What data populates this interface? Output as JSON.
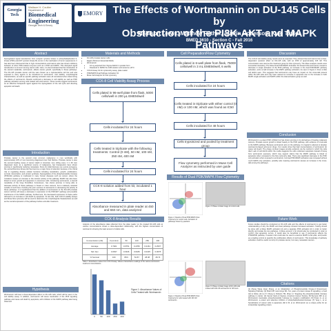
{
  "header": {
    "title_line1": "The Effects of Wortmannin on DU-145 Cells by",
    "title_line2": "Obstruction of the PI3K-AKT and MAPK Pathways",
    "authors": "Madison Lewis, Matthew Rather, Austin Roberson, Kyle Taylor",
    "course": "BMED 3610 - Section C - Fall 2016",
    "logo_gt": [
      "Georgia",
      "Tech"
    ],
    "logo_coulter_top": "Wallace H. Coulter",
    "logo_coulter_dept": [
      "Department of",
      "Biomedical",
      "Engineering"
    ],
    "logo_coulter_bottom": "Georgia Tech & Emory",
    "logo_emory": "EMORY"
  },
  "sections": {
    "abstract": "Abstract",
    "introduction": "Introduction",
    "hypothesis": "Hypothesis",
    "materials_methods": "Materials and Methods",
    "cck8_methods": "CCK-8 Cell Viability Assay Process",
    "cck8_analysis": "CCK-8 Analysis Results",
    "flow_cytometry": "Cell Preparation/Flow Cytometry",
    "flow_results": "Results of Dual PI3K/MAPK Flow Cytometry",
    "discussion": "Discussion",
    "conclusion": "Conclusion",
    "future_work": "Future Work",
    "citations": "Citations"
  },
  "text": {
    "abstract": "Dysregulated signal transduction from receptor tyrosine kinase to phosphatidylinositol 3-kinase (PI3K) and AKT (protein kinase B) occurs in the inactivation of tumor suppressors. It has also been discovered that in high concentrations wortmannin also has shown inhibitory behavior of other PI3K-related enzymes such as mTOR and MAPK. This disrupted signal transduction is common among cancer cells. Here, it is demonstrated that the introduction of the steroid metabolite, wortmannin, affects cancer growth, specifically in these pathways. The DU-145 prostate cancer cell line was chosen as a representative cell line and was exposed to many agents to be introduced to wortmannin. Cell viability, morphological characteristics, as well as specific pathway activation were all considered when determining the effects of wortmannin. Results confirmed a decrease in cell viability as well as PI3K pathway activation among cells treated with wortmannin. These results suggest wortmannin as an effective therapeutic agent against the dysregulation of the cell cycle and directing apoptotic cell death.",
    "introduction": "Prostate cancer is the second most common malignancy in men worldwide with approximately 16% of men becoming diagnosed over their lifetime. Prostate cancer is also the second leading cause of cancer death in American men, killing every 1 in 39 men diagnosed. Even as a significant source of malignancy, few therapeutics have shown promise in significantly reducing metastasis. Since its initial discovery as a proto-oncogene, the serine/threonine kinase Akt has become a major focus of attention because of its critical role in regulating diverse cellular functions including metabolism, growth, proliferation, survival, transcription, and protein synthesis. Dysregulation of the phosphoinositide 3-kinase (PI3K/Akt) pathway is implicated in many human diseases such as cancer, where the mutations causes an increase in the intrinsic activity of the pathway. MAPK has also been linked to tumor growth and apoptosis in cancerous cells. Introducing wortmannin, a steroid metabolite of the fungi Penicillium funiculosum, has shown promise in being able to decrease activity of these pathways in breast or colon cancers, but is relatively untested outside of such lines. Knowing the prior success of wortmannin in decreasing the activity of these pathways, it is hypothesized that the addition of wortmannin to the DU-145 prostate cancer cell line will cause a decrease in expression of the PI3K/AKT pathway and possible interference of the MAPK pathway. Furthermore, the decreased expression of these paths will lead to an increase in cell death by apoptosis. To test this, both CCK-8 viability assays and Muse flow cytometry will be used to determine the morphological characteristics as well as the overall expression of the pathways before and after treatment.",
    "hypothesis": "Wortmannin will have a dose-dependent effect on DU-145 cells, which will be seen in the cell viability assay. In addition, wortmannin will cause inactivation of the PI3K signaling pathway and cause cell death by apoptosis, with inhibition of the MAPK pathway also being observed.",
    "discussion": "The CCK-8 cell viability assay results were as expected. They showed that wortmannin has a dose-dependent cytotoxic effect on DU-145 cells, with an IC50 of approximately 106 nM. This concentration was used as the treatment group for flow cytometry. The Muse analysis results were somewhat interesting. The Muse Dual PI3K/MAPK Activation Kit showed that wortmannin caused a decrease in single activation of the PI3K pathway, an increase in the dual PI3K/MAPK pathway activation, and a small increase in the MAPK pathway activation. As seen in Figure 3, there is little cell debris seen. This suggests that wortmannin may have an impact on the cross-talk present within DU-145 cells and may have caused an increase in apoptosis due to the increase in both MAPK single activation and MAPK within the dual activation group as well.",
    "conclusion": "Wortmannin is a potent PI3K inhibitor but has shown promise in its derivatives of treating malignant cancers. Prostate cancer growth is linked heavily to the PI3K pathway, with evidence of cross-talk to the MAPK pathway. Because wortmannin acts on the pathway, it is logical to attempt to develop wortmannin-based anti-tumor drugs. Our results show that high concentrations of wortmannin do cause cell death. The phase contrast images provide evidence via the method in which the cells died. Lack of cell debris within the media suggests the cells underwent apoptosis instead of being from wortmannin exposure, which may support claims that the MAPK pathway is linked to apoptosis when compared to the flow cytometry data. There was significant decrease in the PI3K only activation when exposed to wortmannin, but dual PI3K/MAPK activation was increased without much MAPK only activation, possibly also meaning wortmannin causes an increase in the cross-talk among the pathways.",
    "future_work": "Future studies should be conducted on DU-145 cells and the effects of wortmannin to get better understanding of why the MAPK and dual pathways showed increased activation. Testing should be done with a Muse MAPK activation kit and a separate PI3K activation kit in order to better identify and isolate the two pathways. A Muse annexin V kit should also be conducted in order to confirm that apoptosis occurs. It would also be beneficial to see if wortmannin affects the PTEN/PI3K pathway. If western blot could also be used to examine MAPK & Akt pAkt, and β-actin as a loading control to quantify the proliferation effects of wortmannin. This knowledge of pathway activation could be useful not only for prostate cancer, but many metastatic cancers.",
    "citations": "[1] Zhang Wang Quan Zhang, et al. Metabolism of Phosphoinositide Kinase-3 Downstream Signaling Pathway. [2] Brazil DP, Hemmings BA. Ten years of protein kinase B signalling: a hard Akt to follow. [3] Liu P, Cheng H, Roberts TM, Zhao JJ. Targeting the phosphoinositide 3-kinase pathway in cancer. [4] Cancer Facts & Figures. American Cancer Society. [5] Wymann MP, et al. Wortmannin inactivates phosphoinositide 3-kinase by covalent modification. [6] Powis G, et al. Wortmannin, a potent and selective inhibitor of phosphatidylinositol-3-kinase. [7] Yang L, et al. Sensitization of cancer cells to apoptosis. [8] Ui M, et al. Wortmannin as a unique probe for an intracellular signalling protein."
  },
  "materials": [
    "DU-145 prostate cancer cells",
    "Eagle's Minimum Essential Media",
    "Wortmannin",
    "10 mg acquired from Sigma-Aldrich in powder form",
    "Dissolved in DMSO for 10M solution and stored at -20°C",
    "CCK-8 Assay Kit for cytotoxicity assay, plate reader",
    "PI3K/MAPK Dual Pathway Activation Kit",
    "Muse Cell Analyzer for flow cytometry"
  ],
  "cck8_steps": [
    "Cells plated in 96-well plate from flask, 5000 cells/well in 200 µL EMEM/well",
    "Cells incubated for 24 hours",
    "Cells treated in triplicate with the following treatments: Control (0 nM), 50 nM, 100 nM, 250 nM, 400 nM",
    "Cells incubated for 24 hours",
    "CCK-8 solution added from kit, incubated 1 hour",
    "Absorbance measured in plate reader at 450 and 650 nm, data analyzed"
  ],
  "flow_steps": [
    "Cells plated in 6-well plate from flask, 75000 cells/well in 3 mL EMEM/well, 6 wells",
    "Cells incubated for 24 hours",
    "Cells treated in triplicate with either control (0 nM) or 100 nM, which was found as IC50",
    "Cells incubated for 48 hours",
    "Cells trypsinized and pooled by treatment group",
    "Flow cytometry performed in Muse Cell Analyzer as instructed by user guide"
  ],
  "cck8_table": {
    "header": [
      "Concentration (nM)",
      "0 (control)",
      "50",
      "100",
      "250",
      "400"
    ],
    "rows": [
      [
        "Average",
        "0.7921",
        "0.6751",
        "0.4780",
        "0.2161",
        "0.2537"
      ],
      [
        "Std. Dev",
        "0.0637",
        "0.0346",
        "0.0186",
        "0.0225",
        "0.0078"
      ],
      [
        "% Survival",
        "100",
        "88.9",
        "54.87",
        "28.38",
        "28.74"
      ]
    ]
  },
  "captions": {
    "table1": "Table 1: Absorbance values from CCK-8 Assay. Values of absorbance readings of the various wortmannin treatment concentrations.",
    "fig1": "Figure 1: Absorbance Values of Cells Treated with Wortmannin",
    "fig2": "Figure 2: Results of Dual PI3K/MAPK Flow Cytometry for control cells. Activation of pathways shown by quadrant.",
    "fig3": "Figure 3: Phase contrast image of control cells.",
    "fig4": "Figure 4: Results of Dual PI3K/MAPK Flow Cytometry for cells treated with 100 nM wortmannin.",
    "fig5": "Figure 5: Phase contrast image of DU-145 cells treated with 100 nM wortmannin for 48 hours."
  },
  "chart_data": {
    "type": "bar",
    "categories": [
      "0",
      "50",
      "100",
      "250",
      "400"
    ],
    "values": [
      0.7921,
      0.6751,
      0.478,
      0.2161,
      0.2537
    ],
    "ylim": [
      0,
      0.9
    ]
  },
  "colors": {
    "header_bg": "#1f3a63",
    "section_bar": "#6f8aac",
    "box_border": "#2f4f7f"
  }
}
